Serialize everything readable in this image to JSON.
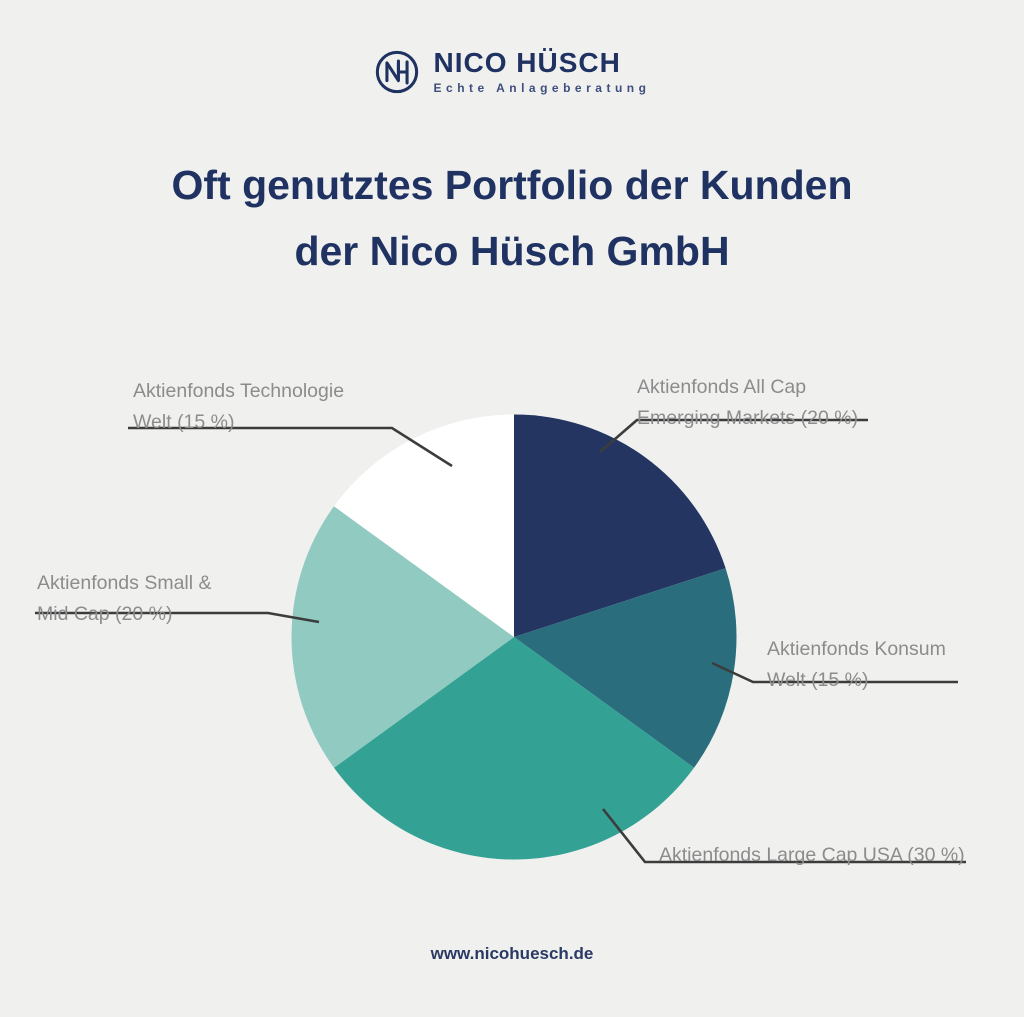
{
  "logo": {
    "monogram": "NH",
    "name": "NICO HÜSCH",
    "tagline": "Echte Anlageberatung"
  },
  "title": {
    "line1": "Oft genutztes Portfolio der Kunden",
    "line2": "der Nico Hüsch GmbH"
  },
  "chart_data": {
    "type": "pie",
    "title": "Oft genutztes Portfolio der Kunden der Nico Hüsch GmbH",
    "start_angle_deg": 0,
    "direction": "clockwise",
    "slices": [
      {
        "label": "Aktienfonds All Cap Emerging Markets",
        "value": 20,
        "color": "#233560"
      },
      {
        "label": "Aktienfonds Konsum Welt",
        "value": 15,
        "color": "#2a6e7e"
      },
      {
        "label": "Aktienfonds Large Cap USA",
        "value": 30,
        "color": "#33a295"
      },
      {
        "label": "Aktienfonds Small & Mid Cap",
        "value": 20,
        "color": "#90cac1"
      },
      {
        "label": "Aktienfonds Technologie Welt",
        "value": 15,
        "color": "#ffffff"
      }
    ],
    "legend_position": "callouts"
  },
  "callouts": {
    "technologie": {
      "line1": "Aktienfonds Technologie",
      "line2": "Welt (15 %)"
    },
    "emerging": {
      "line1": "Aktienfonds All Cap",
      "line2": "Emerging Markets (20 %)"
    },
    "konsum": {
      "line1": "Aktienfonds Konsum",
      "line2": "Welt (15 %)"
    },
    "largecap": {
      "line1": "Aktienfonds Large Cap USA (30 %)"
    },
    "smallmid": {
      "line1": "Aktienfonds Small &",
      "line2": "Mid Cap (20 %)"
    }
  },
  "footer": {
    "url": "www.nicohuesch.de"
  },
  "colors": {
    "background": "#f0f0ef",
    "title_navy": "#1f3262",
    "label_gray": "#8c8c8c",
    "leader_line": "#3c3c3c"
  }
}
